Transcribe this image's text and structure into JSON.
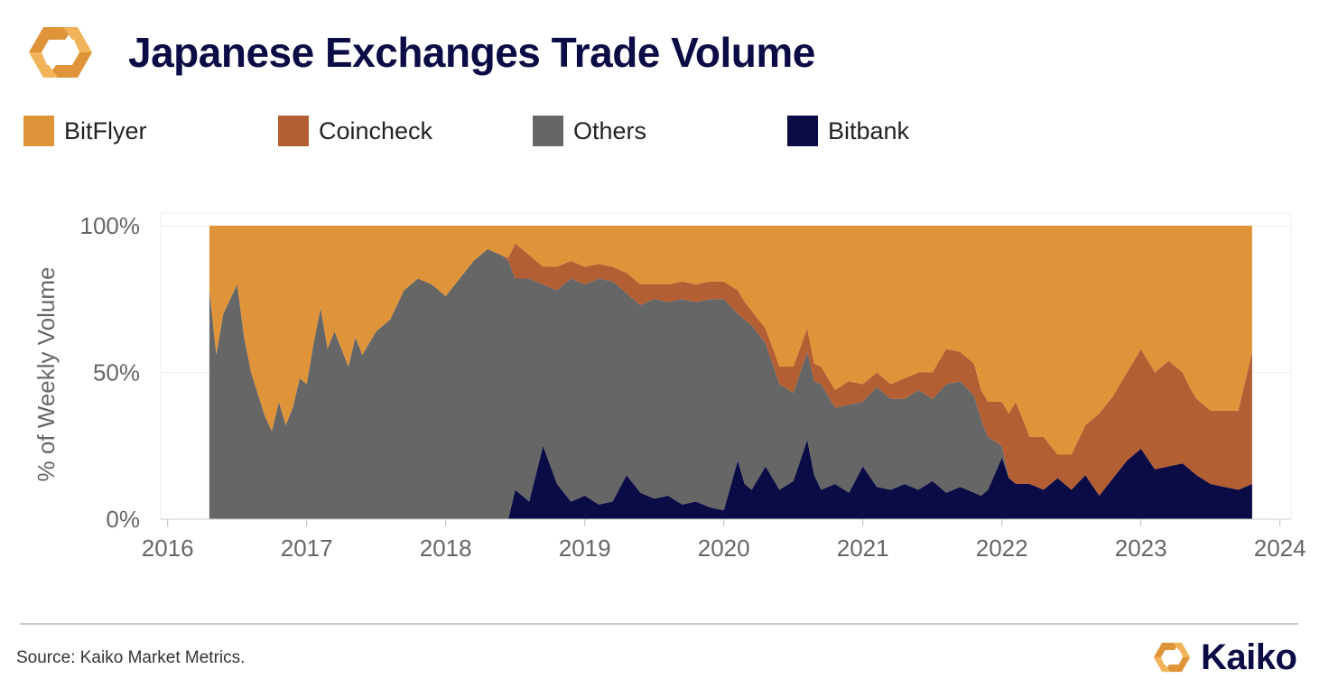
{
  "header": {
    "title": "Japanese Exchanges Trade Volume",
    "logo_icon": "kaiko-logo-icon"
  },
  "legend": [
    {
      "label": "BitFlyer",
      "color": "#e0943a"
    },
    {
      "label": "Coincheck",
      "color": "#b35f33"
    },
    {
      "label": "Others",
      "color": "#666666"
    },
    {
      "label": "Bitbank",
      "color": "#0b0b45"
    }
  ],
  "chart_data": {
    "type": "area",
    "stacking": "percent",
    "title": "Japanese Exchanges Trade Volume",
    "xlabel": "",
    "ylabel": "% of Weekly Volume",
    "xlim": [
      2015.95,
      2024.08
    ],
    "ylim": [
      0,
      100
    ],
    "x_ticks": [
      2016,
      2017,
      2018,
      2019,
      2020,
      2021,
      2022,
      2023,
      2024
    ],
    "y_ticks": [
      {
        "value": 0,
        "label": "0%"
      },
      {
        "value": 50,
        "label": "50%"
      },
      {
        "value": 100,
        "label": "100%"
      }
    ],
    "grid": true,
    "legend_position": "top",
    "x": [
      2016.3,
      2016.35,
      2016.4,
      2016.5,
      2016.55,
      2016.6,
      2016.7,
      2016.75,
      2016.8,
      2016.85,
      2016.9,
      2016.95,
      2017.0,
      2017.05,
      2017.1,
      2017.15,
      2017.2,
      2017.3,
      2017.35,
      2017.4,
      2017.5,
      2017.6,
      2017.7,
      2017.8,
      2017.9,
      2018.0,
      2018.2,
      2018.3,
      2018.4,
      2018.45,
      2018.5,
      2018.55,
      2018.6,
      2018.7,
      2018.8,
      2018.9,
      2019.0,
      2019.1,
      2019.2,
      2019.3,
      2019.4,
      2019.5,
      2019.6,
      2019.7,
      2019.8,
      2019.9,
      2020.0,
      2020.1,
      2020.15,
      2020.2,
      2020.3,
      2020.4,
      2020.5,
      2020.6,
      2020.65,
      2020.7,
      2020.8,
      2020.9,
      2021.0,
      2021.1,
      2021.2,
      2021.3,
      2021.4,
      2021.5,
      2021.6,
      2021.7,
      2021.8,
      2021.85,
      2021.9,
      2022.0,
      2022.05,
      2022.1,
      2022.2,
      2022.3,
      2022.4,
      2022.5,
      2022.6,
      2022.7,
      2022.8,
      2022.9,
      2023.0,
      2023.1,
      2023.2,
      2023.3,
      2023.35,
      2023.4,
      2023.5,
      2023.6,
      2023.7,
      2023.8
    ],
    "series": [
      {
        "name": "Bitbank",
        "values": [
          0,
          0,
          0,
          0,
          0,
          0,
          0,
          0,
          0,
          0,
          0,
          0,
          0,
          0,
          0,
          0,
          0,
          0,
          0,
          0,
          0,
          0,
          0,
          0,
          0,
          0,
          0,
          0,
          0,
          0,
          10,
          8,
          6,
          25,
          12,
          6,
          8,
          5,
          6,
          15,
          9,
          7,
          8,
          5,
          6,
          4,
          3,
          20,
          12,
          10,
          18,
          10,
          13,
          27,
          15,
          10,
          12,
          9,
          18,
          11,
          10,
          12,
          10,
          13,
          9,
          11,
          9,
          8,
          10,
          21,
          14,
          12,
          12,
          10,
          14,
          10,
          15,
          8,
          14,
          20,
          24,
          17,
          18,
          19,
          17,
          15,
          12,
          11,
          10,
          12
        ]
      },
      {
        "name": "Others",
        "values": [
          78,
          56,
          70,
          80,
          62,
          50,
          35,
          30,
          40,
          32,
          38,
          48,
          46,
          60,
          72,
          58,
          64,
          52,
          62,
          56,
          64,
          68,
          78,
          82,
          80,
          76,
          88,
          92,
          90,
          88,
          72,
          74,
          76,
          55,
          66,
          76,
          72,
          77,
          75,
          62,
          64,
          68,
          66,
          70,
          68,
          71,
          72,
          50,
          56,
          56,
          42,
          36,
          30,
          30,
          32,
          36,
          26,
          30,
          22,
          34,
          31,
          29,
          34,
          28,
          37,
          36,
          33,
          26,
          18,
          4,
          0,
          0,
          0,
          0,
          0,
          0,
          0,
          0,
          0,
          0,
          0,
          0,
          0,
          0,
          0,
          0,
          0,
          0,
          0,
          0
        ]
      },
      {
        "name": "Coincheck",
        "values": [
          0,
          0,
          0,
          0,
          0,
          0,
          0,
          0,
          0,
          0,
          0,
          0,
          0,
          0,
          0,
          0,
          0,
          0,
          0,
          0,
          0,
          0,
          0,
          0,
          0,
          0,
          0,
          0,
          0,
          1,
          12,
          10,
          8,
          6,
          8,
          6,
          6,
          5,
          5,
          7,
          7,
          5,
          6,
          6,
          6,
          6,
          6,
          8,
          6,
          5,
          5,
          6,
          9,
          8,
          6,
          6,
          6,
          8,
          6,
          5,
          5,
          7,
          6,
          9,
          12,
          10,
          11,
          10,
          12,
          15,
          22,
          28,
          16,
          18,
          8,
          12,
          17,
          28,
          28,
          30,
          34,
          33,
          36,
          31,
          28,
          26,
          25,
          26,
          27,
          45
        ]
      },
      {
        "name": "BitFlyer",
        "values": [
          22,
          44,
          30,
          20,
          38,
          50,
          65,
          70,
          60,
          68,
          62,
          52,
          54,
          40,
          28,
          42,
          36,
          48,
          38,
          44,
          36,
          32,
          22,
          18,
          20,
          24,
          12,
          8,
          10,
          11,
          6,
          8,
          10,
          14,
          14,
          12,
          14,
          13,
          14,
          16,
          20,
          20,
          20,
          19,
          20,
          19,
          19,
          22,
          26,
          29,
          35,
          48,
          48,
          35,
          47,
          48,
          56,
          53,
          54,
          50,
          54,
          52,
          50,
          50,
          42,
          43,
          47,
          56,
          60,
          60,
          64,
          60,
          72,
          72,
          78,
          78,
          68,
          64,
          58,
          50,
          42,
          50,
          46,
          50,
          55,
          59,
          63,
          63,
          63,
          43
        ]
      }
    ]
  },
  "footer": {
    "source": "Source: Kaiko Market Metrics.",
    "brand": "Kaiko",
    "brand_icon": "kaiko-brand-icon"
  }
}
